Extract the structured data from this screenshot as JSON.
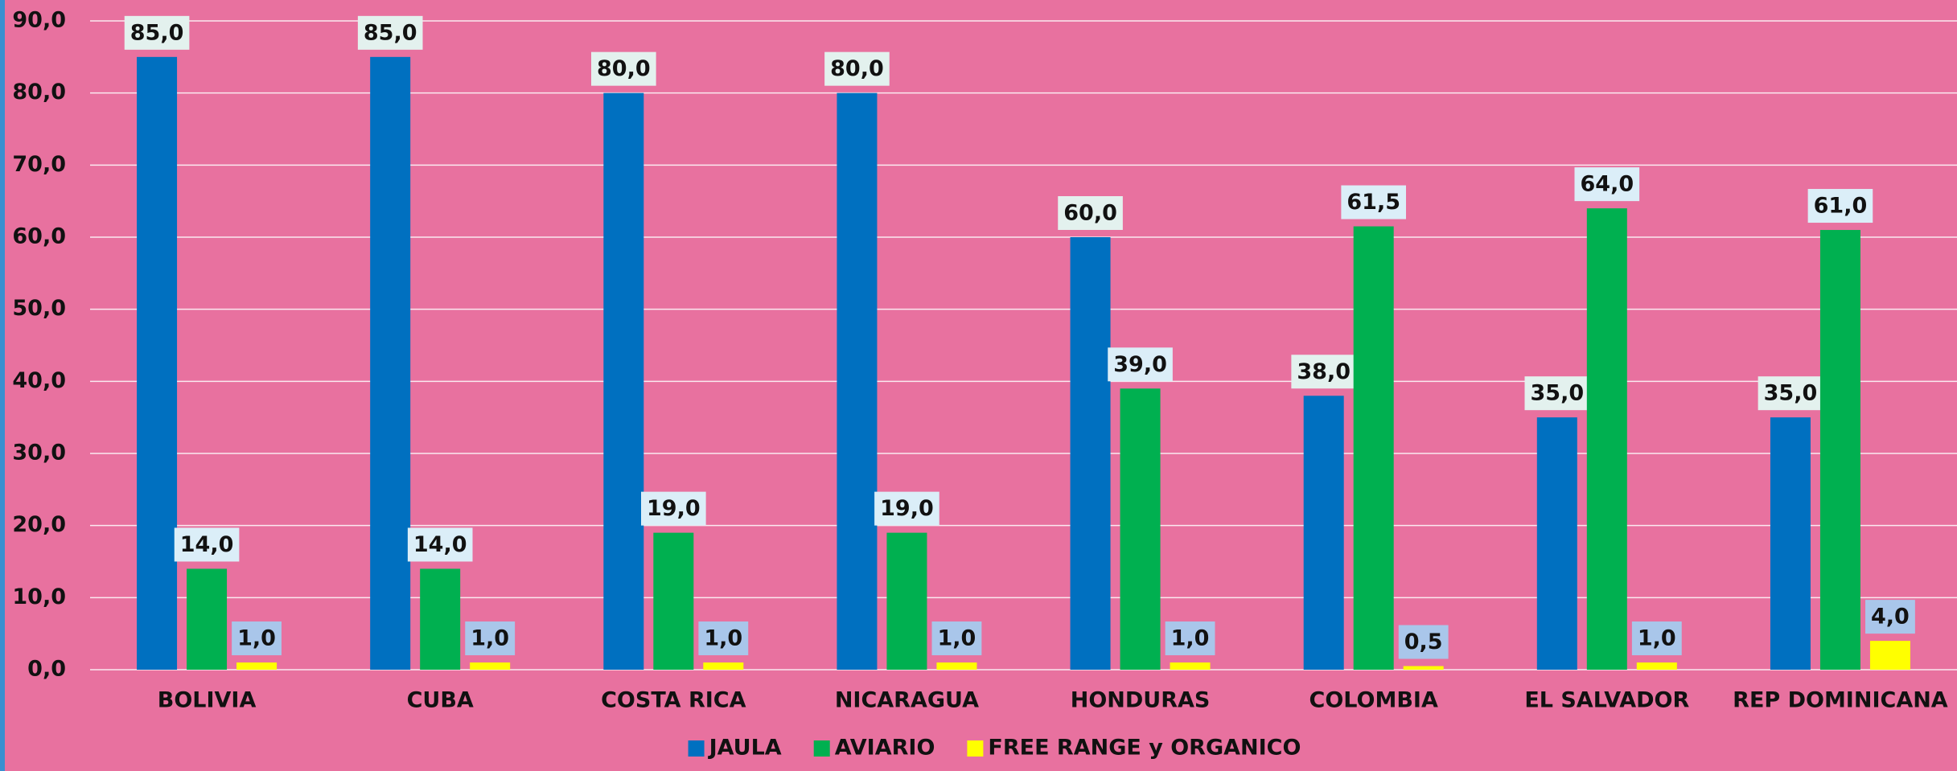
{
  "chart_data": {
    "type": "bar",
    "categories": [
      "BOLIVIA",
      "CUBA",
      "COSTA RICA",
      "NICARAGUA",
      "HONDURAS",
      "COLOMBIA",
      "EL SALVADOR",
      "REP DOMINICANA"
    ],
    "series": [
      {
        "name": "JAULA",
        "color": "#0070c0",
        "values": [
          85,
          85,
          80,
          80,
          60,
          38,
          35,
          35
        ],
        "value_labels": [
          "85,0",
          "85,0",
          "80,0",
          "80,0",
          "60,0",
          "38,0",
          "35,0",
          "35,0"
        ]
      },
      {
        "name": "AVIARIO",
        "color": "#00b050",
        "values": [
          14,
          14,
          19,
          19,
          39,
          61.5,
          64,
          61
        ],
        "value_labels": [
          "14,0",
          "14,0",
          "19,0",
          "19,0",
          "39,0",
          "61,5",
          "64,0",
          "61,0"
        ]
      },
      {
        "name": "FREE RANGE y ORGANICO",
        "color": "#ffff00",
        "values": [
          1,
          1,
          1,
          1,
          1,
          0.5,
          1,
          4
        ],
        "value_labels": [
          "1,0",
          "1,0",
          "1,0",
          "1,0",
          "1,0",
          "0,5",
          "1,0",
          "4,0"
        ]
      }
    ],
    "ylim": [
      0,
      90
    ],
    "yticks": [
      {
        "value": 0,
        "label": "0,0"
      },
      {
        "value": 10,
        "label": "10,0"
      },
      {
        "value": 20,
        "label": "20,0"
      },
      {
        "value": 30,
        "label": "30,0"
      },
      {
        "value": 40,
        "label": "40,0"
      },
      {
        "value": 50,
        "label": "50,0"
      },
      {
        "value": 60,
        "label": "60,0"
      },
      {
        "value": 70,
        "label": "70,0"
      },
      {
        "value": 80,
        "label": "80,0"
      },
      {
        "value": 90,
        "label": "90,0"
      }
    ],
    "grid": true,
    "legend": "bottom"
  }
}
